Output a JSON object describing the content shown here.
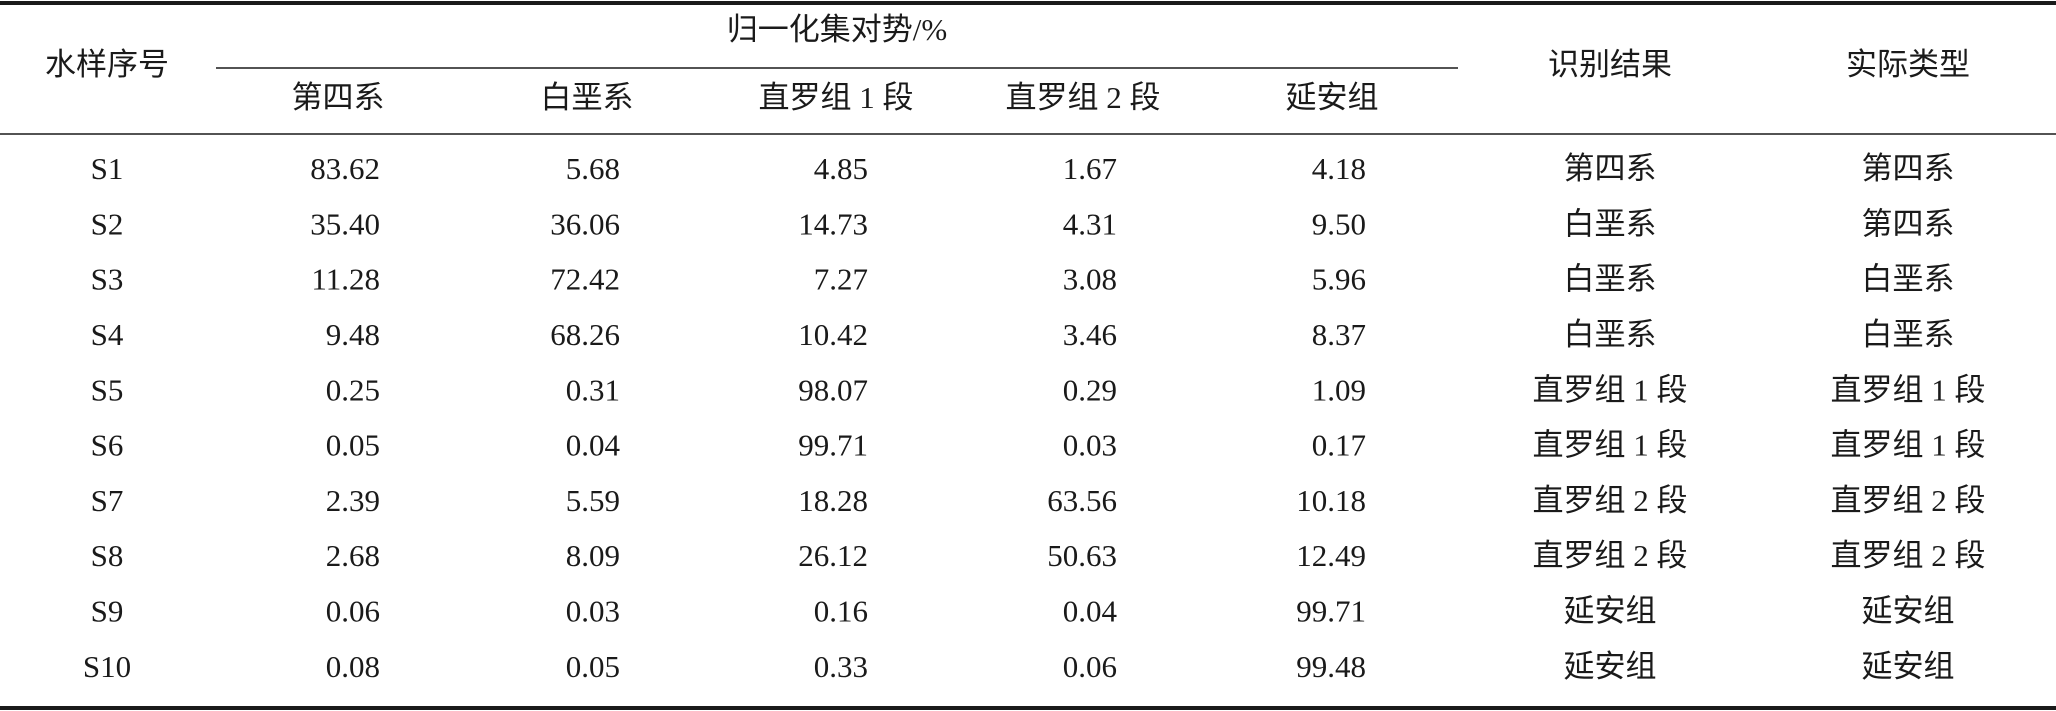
{
  "table": {
    "header": {
      "sample": "水样序号",
      "group": "归一化集对势/%",
      "columns": [
        "第四系",
        "白垩系",
        "直罗组 1 段",
        "直罗组 2 段",
        "延安组"
      ],
      "result": "识别结果",
      "actual": "实际类型"
    },
    "rows": [
      [
        "S1",
        "83.62",
        "5.68",
        "4.85",
        "1.67",
        "4.18",
        "第四系",
        "第四系"
      ],
      [
        "S2",
        "35.40",
        "36.06",
        "14.73",
        "4.31",
        "9.50",
        "白垩系",
        "第四系"
      ],
      [
        "S3",
        "11.28",
        "72.42",
        "7.27",
        "3.08",
        "5.96",
        "白垩系",
        "白垩系"
      ],
      [
        "S4",
        "9.48",
        "68.26",
        "10.42",
        "3.46",
        "8.37",
        "白垩系",
        "白垩系"
      ],
      [
        "S5",
        "0.25",
        "0.31",
        "98.07",
        "0.29",
        "1.09",
        "直罗组 1 段",
        "直罗组 1 段"
      ],
      [
        "S6",
        "0.05",
        "0.04",
        "99.71",
        "0.03",
        "0.17",
        "直罗组 1 段",
        "直罗组 1 段"
      ],
      [
        "S7",
        "2.39",
        "5.59",
        "18.28",
        "63.56",
        "10.18",
        "直罗组 2 段",
        "直罗组 2 段"
      ],
      [
        "S8",
        "2.68",
        "8.09",
        "26.12",
        "50.63",
        "12.49",
        "直罗组 2 段",
        "直罗组 2 段"
      ],
      [
        "S9",
        "0.06",
        "0.03",
        "0.16",
        "0.04",
        "99.71",
        "延安组",
        "延安组"
      ],
      [
        "S10",
        "0.08",
        "0.05",
        "0.33",
        "0.06",
        "99.48",
        "延安组",
        "延安组"
      ]
    ]
  }
}
